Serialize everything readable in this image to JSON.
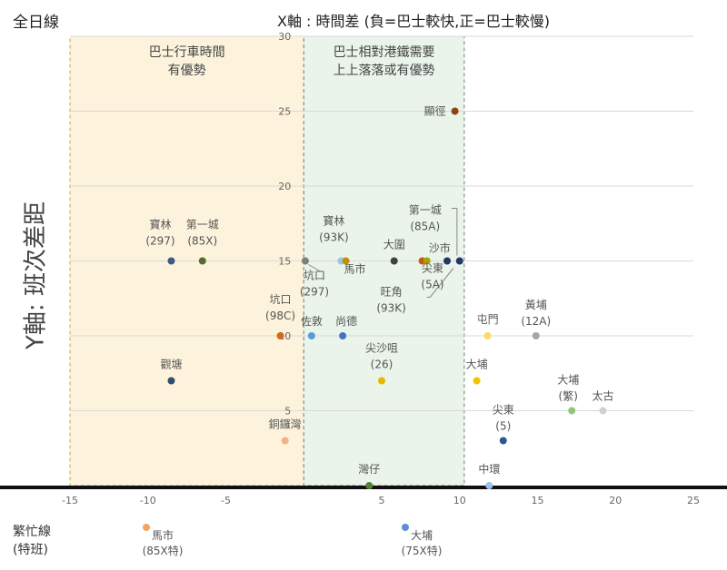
{
  "header": {
    "scope_label": "全日線",
    "x_axis_title": "X軸 : 時間差 (負=巴士較快,正=巴士較慢)",
    "y_axis_title": "Y軸: 班次差距"
  },
  "zones": [
    {
      "lines": [
        "巴士行車時間",
        "有優勢"
      ],
      "x_from": -15,
      "x_to": 0,
      "fill": "#fdf3dc",
      "stroke": "#c8a45e"
    },
    {
      "lines": [
        "巴士相對港鐵需要",
        "上上落落或有優勢"
      ],
      "x_from": 0,
      "x_to": 10.3,
      "fill": "#eaf4ea",
      "stroke": "#6c8a6c"
    }
  ],
  "chart_data": {
    "type": "scatter",
    "title": "",
    "xlabel": "X軸 : 時間差 (負=巴士較快,正=巴士較慢)",
    "ylabel": "Y軸: 班次差距",
    "xlim": [
      -15,
      25
    ],
    "ylim": [
      0,
      30
    ],
    "x_ticks": [
      -15,
      -10,
      -5,
      0,
      5,
      10,
      15,
      20,
      25
    ],
    "x_tick_labels": [
      "-15",
      "-10",
      "-5",
      "",
      "5",
      "10",
      "15",
      "20",
      "25"
    ],
    "y_ticks": [
      5,
      10,
      15,
      20,
      25,
      30
    ],
    "grid": true,
    "points": [
      {
        "id": "baolin-297",
        "x": -8.5,
        "y": 15,
        "color": "#3d5a80",
        "label": [
          "寶林",
          "(297)"
        ]
      },
      {
        "id": "diyicheng-85x",
        "x": -6.5,
        "y": 15,
        "color": "#556b2f",
        "label": [
          "第一城",
          "(85X)"
        ]
      },
      {
        "id": "hangkou-98c",
        "x": -1.5,
        "y": 10,
        "color": "#d2691e",
        "label": [
          "坑口",
          "(98C)"
        ]
      },
      {
        "id": "guantang",
        "x": -8.5,
        "y": 7,
        "color": "#2f4f6f",
        "label": [
          "觀塘"
        ]
      },
      {
        "id": "tongluowan",
        "x": -1.2,
        "y": 3,
        "color": "#f4b183",
        "label": [
          "銅鑼灣"
        ]
      },
      {
        "id": "hangkou-297",
        "x": 0.1,
        "y": 15,
        "color": "#7f7f7f",
        "label": [
          "坑口",
          "(297)"
        ]
      },
      {
        "id": "baolin-93k",
        "x": 2.4,
        "y": 15,
        "color": "#9dc3e6",
        "label": [
          "寶林",
          "(93K)"
        ]
      },
      {
        "id": "mashi",
        "x": 2.7,
        "y": 15,
        "color": "#bf9000",
        "label": [
          "馬市"
        ]
      },
      {
        "id": "zuodun",
        "x": 0.5,
        "y": 10,
        "color": "#5b9bd5",
        "label": [
          "佐敦"
        ]
      },
      {
        "id": "shangde",
        "x": 2.5,
        "y": 10,
        "color": "#4472c4",
        "label": [
          "尚德"
        ]
      },
      {
        "id": "jianshaju-26",
        "x": 5.0,
        "y": 7,
        "color": "#e6b800",
        "label": [
          "尖沙咀",
          "(26)"
        ]
      },
      {
        "id": "dawei",
        "x": 5.8,
        "y": 15,
        "color": "#404040",
        "label": [
          "大圍"
        ]
      },
      {
        "id": "wangjiao-93k",
        "x": 7.6,
        "y": 15,
        "color": "#c55a11",
        "label": [
          "旺角",
          "(93K)"
        ]
      },
      {
        "id": "shashi",
        "x": 7.9,
        "y": 15,
        "color": "#a5a500",
        "label": [
          "沙市"
        ]
      },
      {
        "id": "diyicheng-85a",
        "x": 10.0,
        "y": 15,
        "color": "#1f3864",
        "label": [
          "第一城",
          "(85A)"
        ]
      },
      {
        "id": "jiandong-5a",
        "x": 9.2,
        "y": 15,
        "color": "#1f3864",
        "label": [
          "尖東",
          "(5A)"
        ]
      },
      {
        "id": "xianjing",
        "x": 9.7,
        "y": 25,
        "color": "#8b4513",
        "label": [
          "顯徑"
        ]
      },
      {
        "id": "wanzai",
        "x": 4.2,
        "y": 0,
        "color": "#548235",
        "label": [
          "灣仔"
        ]
      },
      {
        "id": "tunmen",
        "x": 11.8,
        "y": 10,
        "color": "#ffd966",
        "label": [
          "屯門"
        ]
      },
      {
        "id": "huangpu-12a",
        "x": 14.9,
        "y": 10,
        "color": "#a6a6a6",
        "label": [
          "黃埔",
          "(12A)"
        ]
      },
      {
        "id": "dapu",
        "x": 11.1,
        "y": 7,
        "color": "#f2c200",
        "label": [
          "大埔"
        ]
      },
      {
        "id": "dapu-fan",
        "x": 17.2,
        "y": 5,
        "color": "#92c47d",
        "label": [
          "大埔",
          "(繁)"
        ]
      },
      {
        "id": "taigu",
        "x": 19.2,
        "y": 5,
        "color": "#d0d0d0",
        "label": [
          "太古"
        ]
      },
      {
        "id": "jiandong-5",
        "x": 12.8,
        "y": 3,
        "color": "#2f5597",
        "label": [
          "尖東",
          "(5)"
        ]
      },
      {
        "id": "zhonghuan",
        "x": 11.9,
        "y": 0,
        "color": "#9dc3e6",
        "label": [
          "中環"
        ]
      }
    ]
  },
  "busy_lines": {
    "label": [
      "繁忙線",
      "(特班)"
    ],
    "items": [
      {
        "id": "mashi-85x-special",
        "label": [
          "馬市",
          "(85X特)"
        ],
        "color": "#f4a460"
      },
      {
        "id": "dapu-75x-special",
        "label": [
          "大埔",
          "(75X特)"
        ],
        "color": "#5b8fd6"
      }
    ]
  }
}
